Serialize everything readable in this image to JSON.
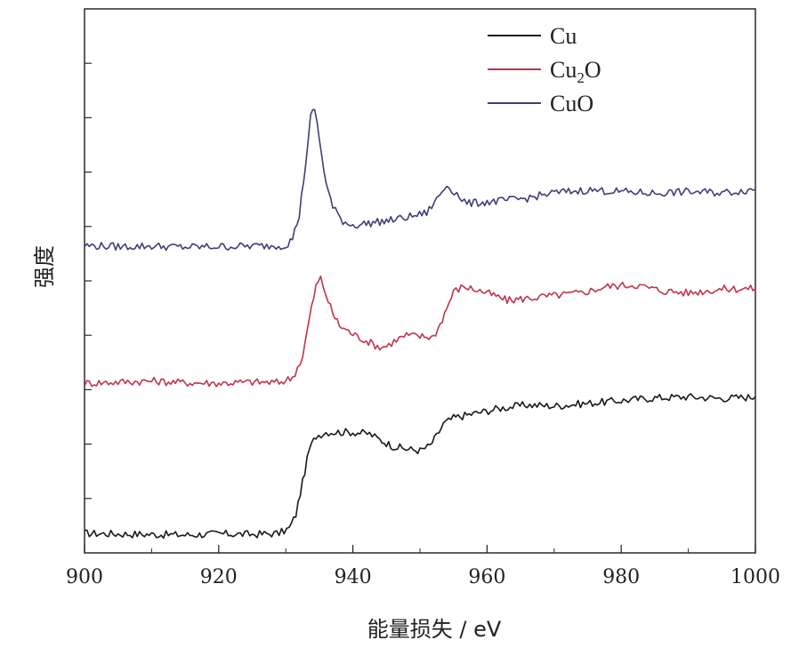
{
  "chart_data": {
    "type": "line",
    "xlabel": "能量损失 / eV",
    "ylabel": "强度",
    "xlim": [
      900,
      1000
    ],
    "xticks": [
      900,
      920,
      940,
      960,
      980,
      1000
    ],
    "ylim": [
      0,
      1
    ],
    "y_tick_labels": "none",
    "legend_position": "top-right",
    "series": [
      {
        "name": "Cu",
        "legend_base": "Cu",
        "legend_sub": "",
        "legend_tail": "",
        "color": "#1a1a1a",
        "points": [
          [
            900,
            0.036
          ],
          [
            905,
            0.035
          ],
          [
            910,
            0.034
          ],
          [
            915,
            0.033
          ],
          [
            920,
            0.035
          ],
          [
            925,
            0.034
          ],
          [
            929,
            0.036
          ],
          [
            930.5,
            0.045
          ],
          [
            931.5,
            0.07
          ],
          [
            932.5,
            0.13
          ],
          [
            933.5,
            0.19
          ],
          [
            934.5,
            0.215
          ],
          [
            936,
            0.222
          ],
          [
            940,
            0.222
          ],
          [
            942.5,
            0.219
          ],
          [
            944,
            0.208
          ],
          [
            946,
            0.196
          ],
          [
            948,
            0.191
          ],
          [
            950,
            0.188
          ],
          [
            951.5,
            0.197
          ],
          [
            952.5,
            0.215
          ],
          [
            953.5,
            0.237
          ],
          [
            955,
            0.248
          ],
          [
            958,
            0.256
          ],
          [
            962,
            0.266
          ],
          [
            966,
            0.272
          ],
          [
            970,
            0.27
          ],
          [
            975,
            0.275
          ],
          [
            980,
            0.28
          ],
          [
            985,
            0.285
          ],
          [
            990,
            0.287
          ],
          [
            995,
            0.284
          ],
          [
            1000,
            0.287
          ]
        ]
      },
      {
        "name": "Cu₂O",
        "legend_base": "Cu",
        "legend_sub": "2",
        "legend_tail": "O",
        "color": "#c0344b",
        "points": [
          [
            900,
            0.312
          ],
          [
            905,
            0.314
          ],
          [
            910,
            0.316
          ],
          [
            915,
            0.313
          ],
          [
            920,
            0.312
          ],
          [
            925,
            0.314
          ],
          [
            929,
            0.313
          ],
          [
            931,
            0.322
          ],
          [
            932.5,
            0.36
          ],
          [
            933.5,
            0.43
          ],
          [
            934.5,
            0.49
          ],
          [
            935.2,
            0.505
          ],
          [
            936,
            0.475
          ],
          [
            937,
            0.44
          ],
          [
            938,
            0.418
          ],
          [
            940,
            0.402
          ],
          [
            942,
            0.39
          ],
          [
            944,
            0.378
          ],
          [
            945,
            0.38
          ],
          [
            946.5,
            0.392
          ],
          [
            948,
            0.4
          ],
          [
            950,
            0.398
          ],
          [
            952,
            0.397
          ],
          [
            953,
            0.42
          ],
          [
            954,
            0.45
          ],
          [
            955,
            0.48
          ],
          [
            956.5,
            0.49
          ],
          [
            960,
            0.478
          ],
          [
            963,
            0.464
          ],
          [
            966,
            0.468
          ],
          [
            970,
            0.473
          ],
          [
            974,
            0.478
          ],
          [
            978,
            0.49
          ],
          [
            982,
            0.493
          ],
          [
            986,
            0.482
          ],
          [
            990,
            0.478
          ],
          [
            995,
            0.485
          ],
          [
            1000,
            0.486
          ]
        ]
      },
      {
        "name": "CuO",
        "legend_base": "CuO",
        "legend_sub": "",
        "legend_tail": "",
        "color": "#3e3f78",
        "points": [
          [
            900,
            0.565
          ],
          [
            905,
            0.563
          ],
          [
            910,
            0.564
          ],
          [
            915,
            0.562
          ],
          [
            920,
            0.563
          ],
          [
            925,
            0.564
          ],
          [
            930,
            0.565
          ],
          [
            931,
            0.578
          ],
          [
            932,
            0.62
          ],
          [
            933,
            0.72
          ],
          [
            933.7,
            0.8
          ],
          [
            934.3,
            0.818
          ],
          [
            935,
            0.76
          ],
          [
            936,
            0.68
          ],
          [
            937,
            0.635
          ],
          [
            938.5,
            0.61
          ],
          [
            940,
            0.602
          ],
          [
            943,
            0.607
          ],
          [
            946,
            0.612
          ],
          [
            948.5,
            0.618
          ],
          [
            951,
            0.625
          ],
          [
            952.5,
            0.65
          ],
          [
            954,
            0.676
          ],
          [
            955.5,
            0.66
          ],
          [
            957,
            0.642
          ],
          [
            960,
            0.645
          ],
          [
            963,
            0.648
          ],
          [
            966,
            0.652
          ],
          [
            970,
            0.662
          ],
          [
            975,
            0.667
          ],
          [
            980,
            0.664
          ],
          [
            985,
            0.661
          ],
          [
            990,
            0.664
          ],
          [
            995,
            0.662
          ],
          [
            1000,
            0.668
          ]
        ]
      }
    ]
  }
}
